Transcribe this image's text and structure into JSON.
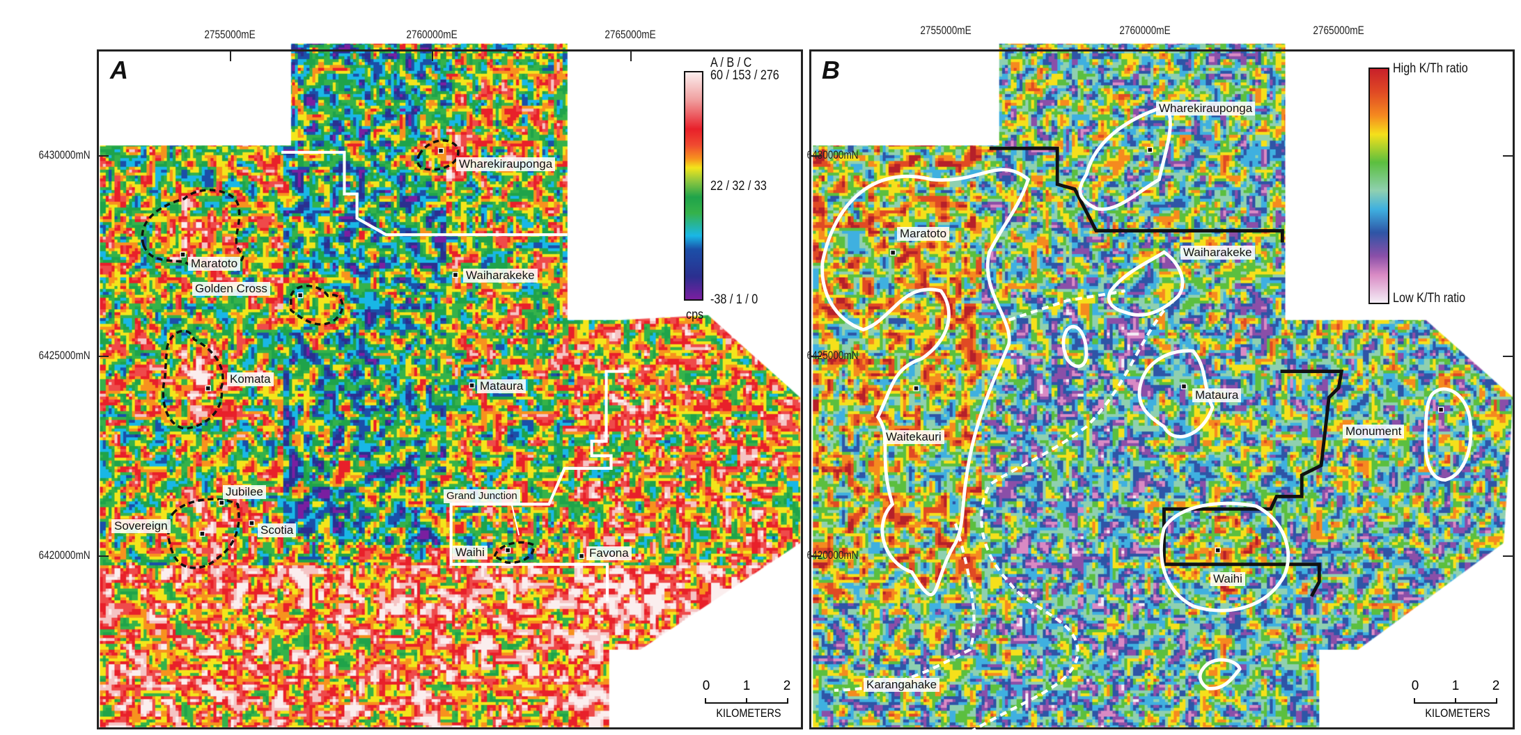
{
  "colors": {
    "frame": "#222222",
    "colormap_a": [
      "#7a1fa0",
      "#2b2f8f",
      "#1b4fa8",
      "#19b7e6",
      "#1fa34a",
      "#35b24a",
      "#f3e51b",
      "#f7921e",
      "#e8202a",
      "#ef4a4a",
      "#f5c4c4",
      "#fbeeee"
    ],
    "colormap_b": [
      "#f4eef6",
      "#d98ac4",
      "#8a4fa8",
      "#2e55a6",
      "#3fb0e0",
      "#8fd0b0",
      "#5bbf3f",
      "#f5e01b",
      "#f58a1f",
      "#e04a24",
      "#b5202a"
    ],
    "outline_a": "#111111",
    "outline_b": "#ffffff",
    "boundary_a": "#ffffff",
    "boundary_b": "#111111"
  },
  "panels": [
    {
      "letter": "A",
      "x_ticks": [
        "2755000mE",
        "2760000mE",
        "2765000mE"
      ],
      "y_ticks": [
        "6430000mN",
        "6425000mN",
        "6420000mN"
      ],
      "legend": {
        "header": "A  /  B  /  C",
        "max": "60 / 153 / 276",
        "mid": "22 /  32  /  33",
        "min": "-38 /  1   /   0",
        "unit": "cps"
      },
      "places": [
        "Wharekirauponga",
        "Maratoto",
        "Golden Cross",
        "Waiharakeke",
        "Komata",
        "Mataura",
        "Jubilee",
        "Sovereign",
        "Scotia",
        "Grand Junction",
        "Waihi",
        "Favona"
      ],
      "scale": {
        "ticks": [
          "0",
          "1",
          "2"
        ],
        "unit": "KILOMETERS"
      }
    },
    {
      "letter": "B",
      "x_ticks": [
        "2755000mE",
        "2760000mE",
        "2765000mE"
      ],
      "y_ticks": [
        "6430000mN",
        "6425000mN",
        "6420000mN"
      ],
      "legend": {
        "high": "High K/Th ratio",
        "low": "Low K/Th ratio"
      },
      "places": [
        "Wharekirauponga",
        "Maratoto",
        "Waiharakeke",
        "Mataura",
        "Monument",
        "Waitekauri",
        "Waihi",
        "Karangahake"
      ],
      "scale": {
        "ticks": [
          "0",
          "1",
          "2"
        ],
        "unit": "KILOMETERS"
      }
    }
  ]
}
